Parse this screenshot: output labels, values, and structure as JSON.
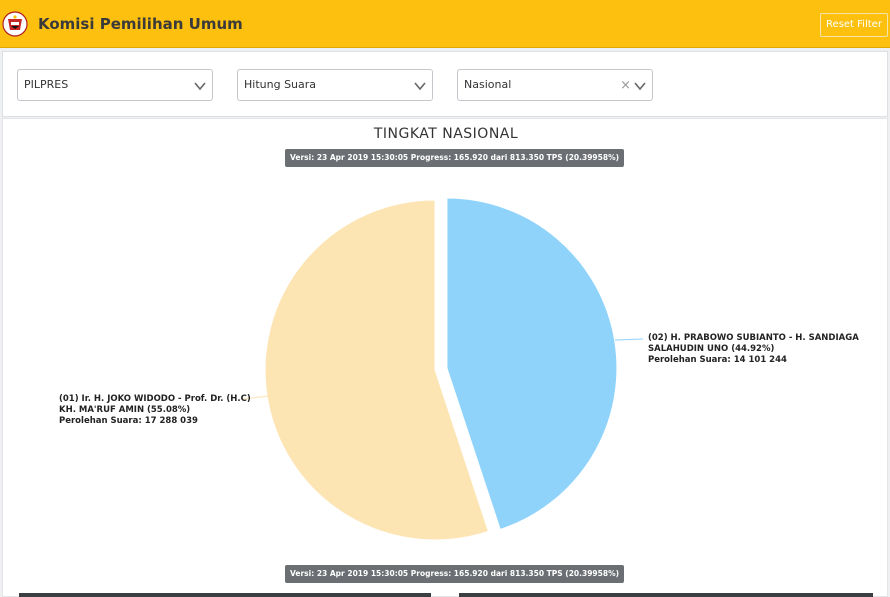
{
  "header": {
    "title": "Komisi Pemilihan Umum",
    "reset_label": "Reset Filter"
  },
  "filters": {
    "election": {
      "selected": "PILPRES"
    },
    "mode": {
      "selected": "Hitung Suara"
    },
    "region": {
      "selected": "Nasional",
      "clear_symbol": "×"
    }
  },
  "chart": {
    "title": "TINGKAT NASIONAL",
    "version_text": "Versi: 23 Apr 2019 15:30:05 Progress: 165.920 dari 813.350 TPS (20.39958%)",
    "version_text_bottom": "Versi: 23 Apr 2019 15:30:05 Progress: 165.920 dari 813.350 TPS (20.39958%)",
    "candidate_02": {
      "line1": "(02) H. PRABOWO SUBIANTO - H. SANDIAGA",
      "line2": "SALAHUDIN UNO (44.92%)",
      "line3": "Perolehan Suara: 14 101 244"
    },
    "candidate_01": {
      "line1": "(01) Ir. H. JOKO WIDODO - Prof. Dr. (H.C)",
      "line2": "KH. MA'RUF AMIN (55.08%)",
      "line3": "Perolehan Suara: 17 288 039"
    }
  },
  "chart_data": {
    "type": "pie",
    "title": "TINGKAT NASIONAL",
    "categories": [
      "(02) H. PRABOWO SUBIANTO - H. SANDIAGA SALAHUDIN UNO",
      "(01) Ir. H. JOKO WIDODO - Prof. Dr. (H.C) KH. MA'RUF AMIN"
    ],
    "values": [
      14101244,
      17288039
    ],
    "percentages": [
      44.92,
      55.08
    ],
    "colors": [
      "#8fd3fb",
      "#fde4b3"
    ]
  },
  "colors": {
    "accent": "#fdc00f",
    "slice_02": "#8fd3fb",
    "slice_01": "#fde4b3"
  }
}
